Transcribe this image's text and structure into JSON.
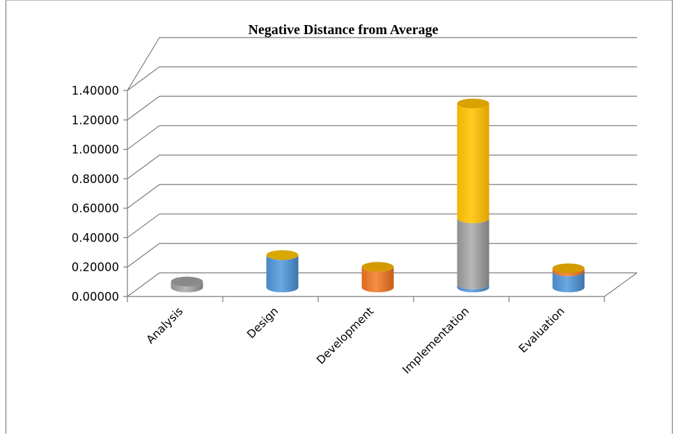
{
  "chart_data": {
    "type": "bar",
    "stacked": true,
    "style": "3d-cylinder",
    "title": "Negative Distance from Average",
    "categories": [
      "Analysis",
      "Design",
      "Development",
      "Implementation",
      "Evaluation"
    ],
    "ylim": [
      0,
      1.4
    ],
    "yticks": [
      "0.00000",
      "0.20000",
      "0.40000",
      "0.60000",
      "0.80000",
      "1.00000",
      "1.20000",
      "1.40000"
    ],
    "grid": true,
    "legend": "none",
    "series": [
      {
        "color": "#5b9bd5",
        "values": [
          0.0,
          0.22,
          0.0,
          0.02,
          0.11
        ]
      },
      {
        "color": "#a5a5a5",
        "values": [
          0.04,
          0.0,
          0.0,
          0.45,
          0.0
        ]
      },
      {
        "color": "#ed7d31",
        "values": [
          0.0,
          0.0,
          0.14,
          0.0,
          0.02
        ]
      },
      {
        "color": "#ffc000",
        "values": [
          0.0,
          0.0,
          0.0,
          0.78,
          0.0
        ]
      }
    ]
  }
}
